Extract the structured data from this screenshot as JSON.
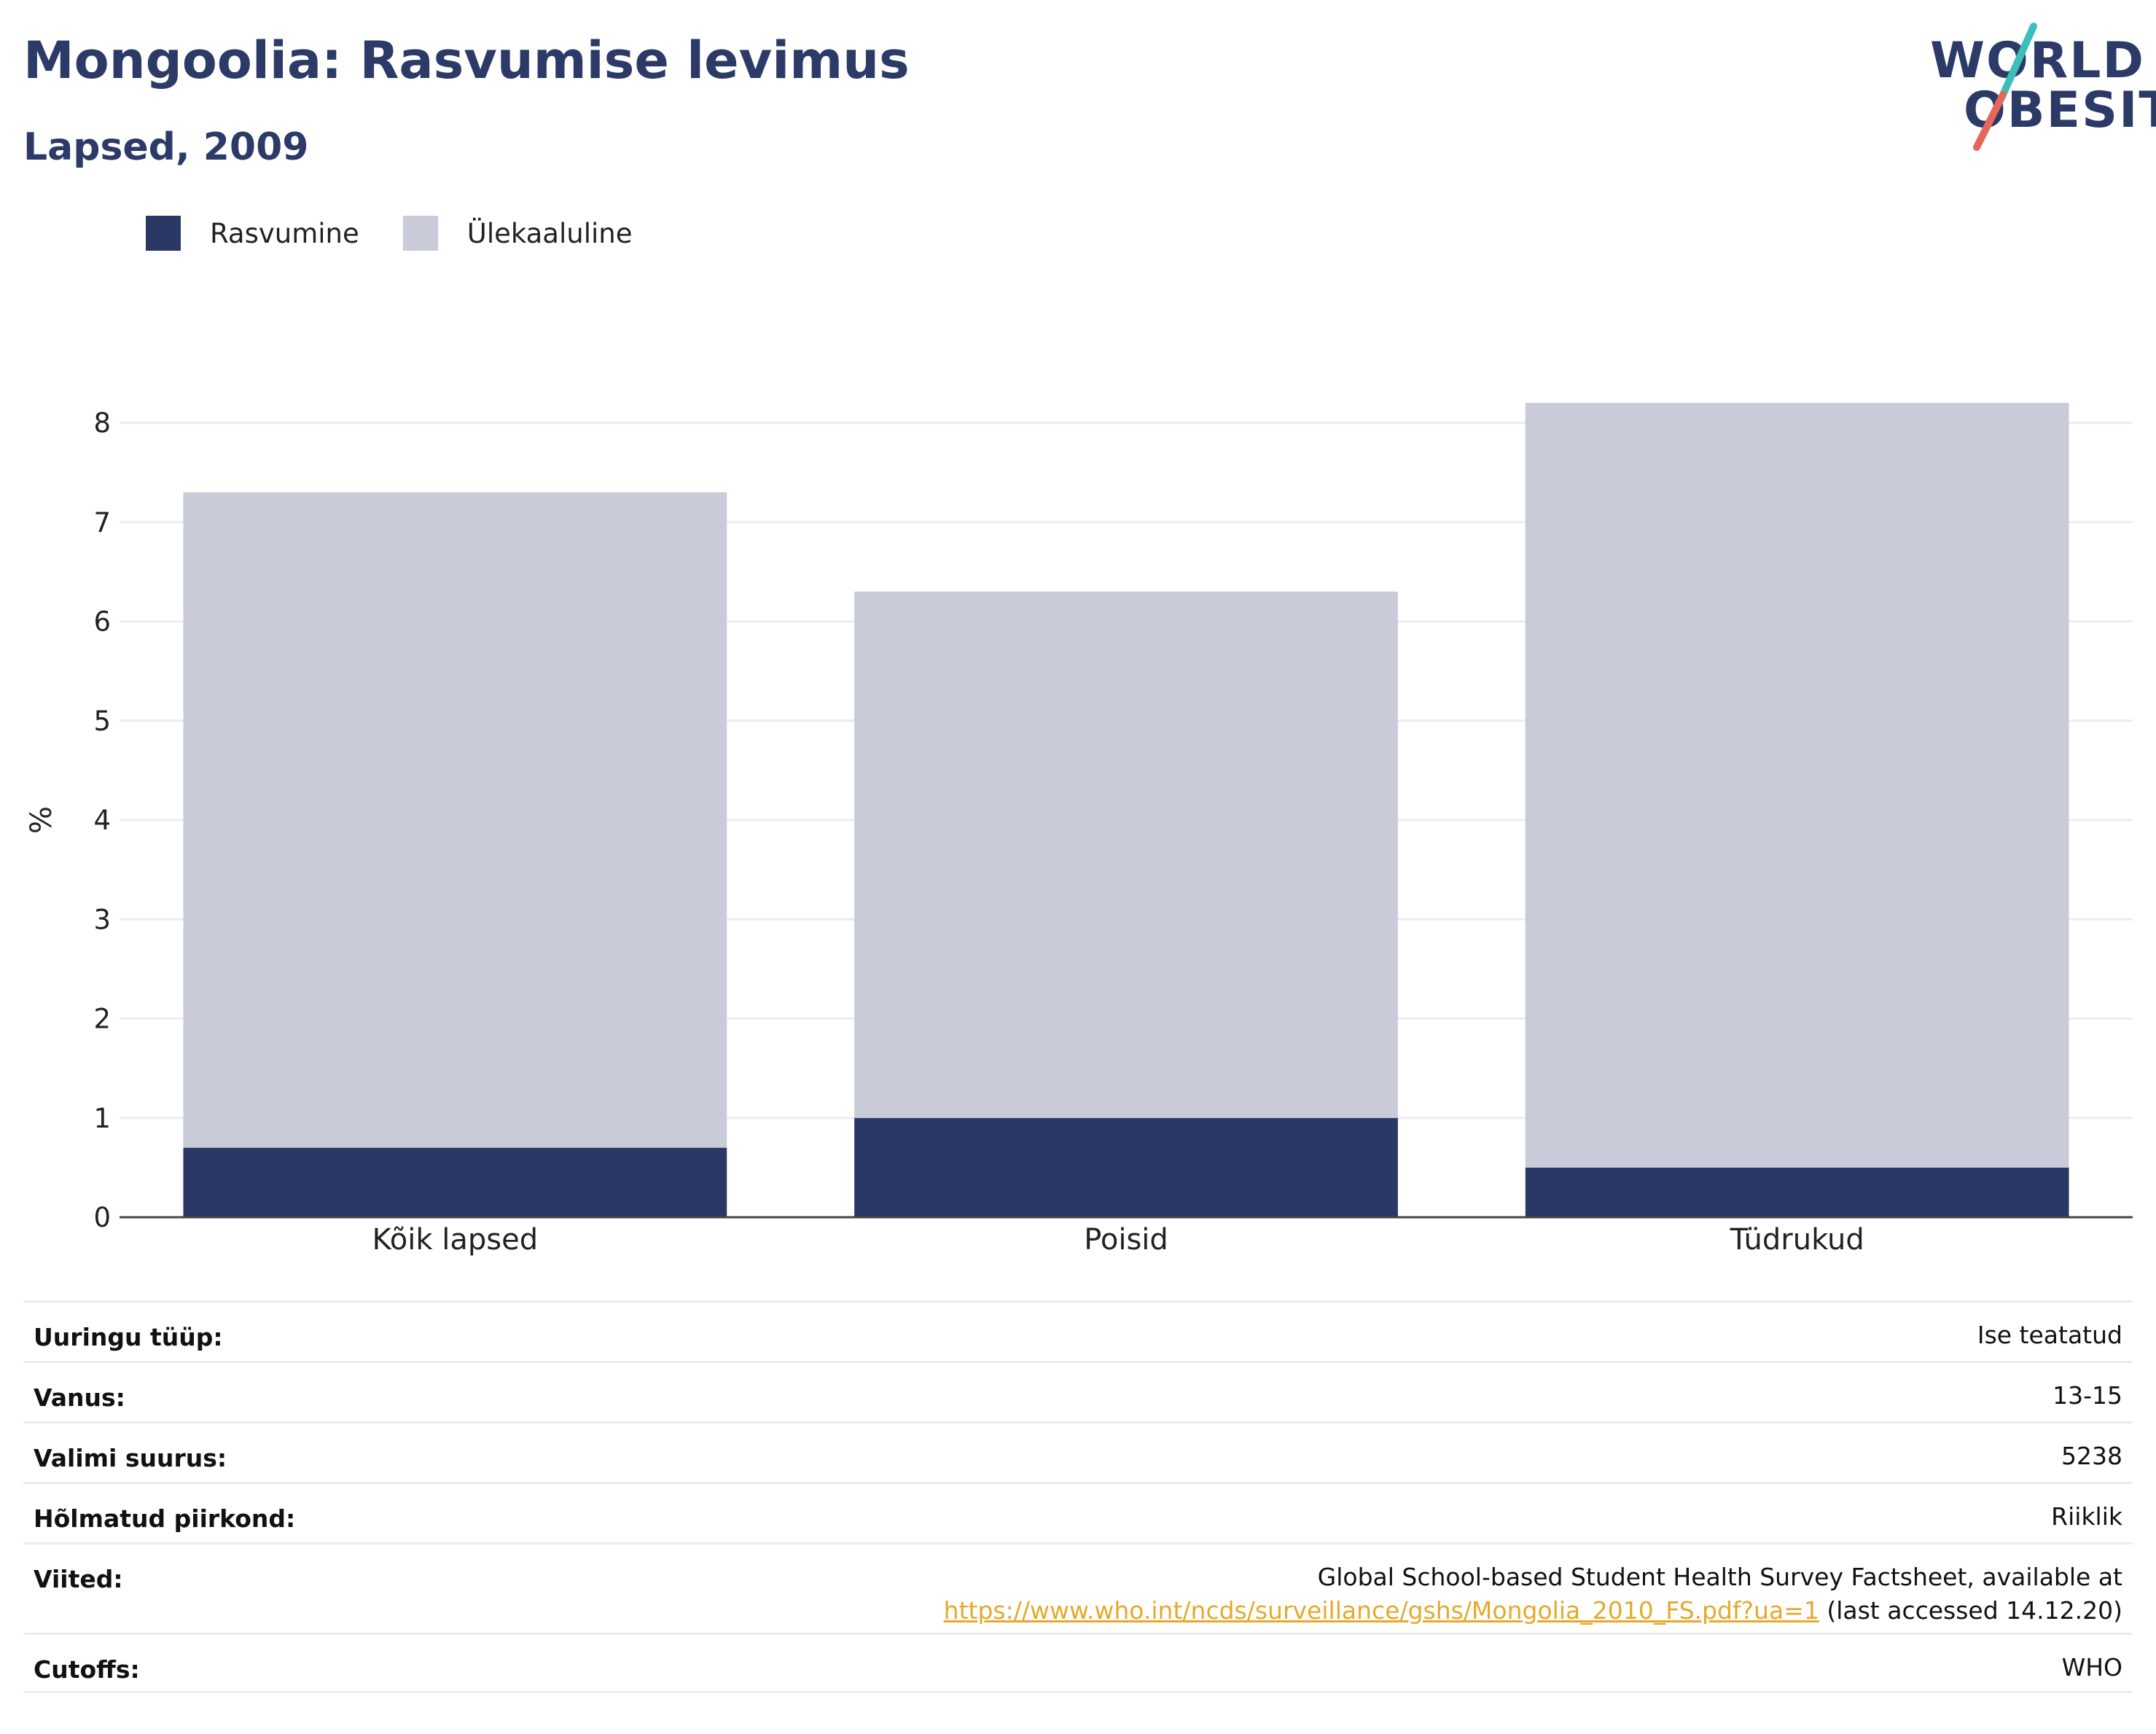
{
  "header": {
    "title": "Mongoolia: Rasvumise levimus",
    "subtitle": "Lapsed, 2009"
  },
  "logo": {
    "line1": "WORLD",
    "line2": "OBESITY",
    "text_color": "#2b3a67",
    "slash_colors": [
      "#3cbfb8",
      "#e4675c"
    ]
  },
  "legend": {
    "items": [
      {
        "label": "Rasvumine",
        "color": "#2b3765"
      },
      {
        "label": "Ülekaaluline",
        "color": "#c9ccd8"
      }
    ]
  },
  "chart_data": {
    "type": "bar",
    "stacked": true,
    "categories": [
      "Kõik lapsed",
      "Poisid",
      "Tüdrukud"
    ],
    "series": [
      {
        "name": "Rasvumine",
        "color": "#2b3765",
        "values": [
          0.7,
          1.0,
          0.5
        ]
      },
      {
        "name": "Ülekaaluline",
        "color": "#c9ccd8",
        "values": [
          6.6,
          5.3,
          7.7
        ]
      }
    ],
    "ylabel": "%",
    "ylim": [
      0,
      8
    ],
    "yticks": [
      "0",
      "1",
      "2",
      "3",
      "4",
      "5",
      "6",
      "7",
      "8"
    ],
    "grid": true
  },
  "meta": {
    "rows": [
      {
        "key": "Uuringu tüüp:",
        "value": "Ise teatatud"
      },
      {
        "key": "Vanus:",
        "value": "13-15"
      },
      {
        "key": "Valimi suurus:",
        "value": "5238"
      },
      {
        "key": "Hõlmatud piirkond:",
        "value": "Riiklik"
      }
    ],
    "references": {
      "key": "Viited:",
      "line1": "Global School-based Student Health Survey Factsheet, available at",
      "link": "https://www.who.int/ncds/surveillance/gshs/Mongolia_2010_FS.pdf?ua=1",
      "suffix": " (last accessed 14.12.20)"
    },
    "cutoffs": {
      "key": "Cutoffs:",
      "value": "WHO"
    }
  }
}
